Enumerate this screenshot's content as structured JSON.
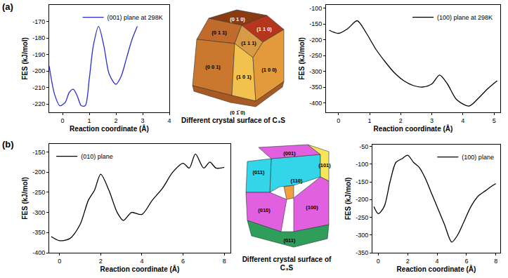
{
  "panel_labels": [
    "(a)",
    "(b)"
  ],
  "chart_data": [
    {
      "type": "line",
      "x_label": "Reaction coordinate (Å)",
      "y_label": "FES (kJ/mol)",
      "x": [
        -0.5,
        -0.3,
        -0.1,
        0.1,
        0.25,
        0.4,
        0.55,
        0.7,
        0.85,
        1.0,
        1.15,
        1.35,
        1.55,
        1.75,
        2.0,
        2.2,
        2.4,
        2.6,
        2.8
      ],
      "series": [
        {
          "name": "(001) plane at 298K",
          "color": "#2b2bd6",
          "values": [
            -197,
            -214,
            -221,
            -219,
            -213,
            -211,
            -215,
            -221,
            -221,
            -205,
            -185,
            -173,
            -185,
            -202,
            -208,
            -203,
            -192,
            -181,
            -173
          ]
        }
      ],
      "xlim": [
        -0.5,
        4.0
      ],
      "xticks": [
        0,
        1,
        2,
        3,
        4
      ],
      "ylim": [
        -225,
        -160
      ],
      "yticks": [
        -220,
        -210,
        -200,
        -190,
        -180,
        -170
      ],
      "grid": false,
      "legend": "top right"
    },
    {
      "type": "line",
      "x_label": "Reaction coordinate (Å)",
      "y_label": "FES (kJ/mol)",
      "x": [
        -0.3,
        0,
        0.3,
        0.6,
        0.9,
        1.2,
        1.5,
        1.8,
        2.1,
        2.4,
        2.7,
        3.0,
        3.25,
        3.5,
        3.8,
        4.2,
        4.5,
        4.8,
        5.1
      ],
      "series": [
        {
          "name": "(100) plane at 298K",
          "color": "#000000",
          "values": [
            -170,
            -180,
            -165,
            -140,
            -180,
            -230,
            -270,
            -305,
            -330,
            -345,
            -350,
            -340,
            -312,
            -340,
            -390,
            -410,
            -385,
            -355,
            -330
          ]
        }
      ],
      "xlim": [
        -0.4,
        5.2
      ],
      "xticks": [
        0,
        1,
        2,
        3,
        4,
        5
      ],
      "ylim": [
        -430,
        -90
      ],
      "yticks": [
        -400,
        -350,
        -300,
        -250,
        -200,
        -150,
        -100
      ],
      "grid": false,
      "legend": "top right"
    },
    {
      "type": "line",
      "x_label": "Reaction coordinate (Å)",
      "y_label": "FES (kJ/mol)",
      "x": [
        -0.4,
        0,
        0.5,
        1.0,
        1.4,
        1.7,
        2.0,
        2.4,
        2.8,
        3.1,
        3.5,
        4.0,
        4.5,
        5.0,
        5.5,
        6.0,
        6.3,
        6.6,
        7.0,
        7.3,
        7.6,
        8.0
      ],
      "series": [
        {
          "name": "(010) plane",
          "color": "#000000",
          "values": [
            -360,
            -370,
            -365,
            -330,
            -270,
            -245,
            -205,
            -245,
            -300,
            -320,
            -300,
            -305,
            -270,
            -240,
            -200,
            -178,
            -190,
            -155,
            -190,
            -175,
            -190,
            -188
          ]
        }
      ],
      "xlim": [
        -0.5,
        8.3
      ],
      "xticks": [
        0,
        2,
        4,
        6,
        8
      ],
      "ylim": [
        -400,
        -130
      ],
      "yticks": [
        -400,
        -350,
        -300,
        -250,
        -200,
        -150
      ],
      "grid": false,
      "legend": "top left"
    },
    {
      "type": "line",
      "x_label": "Reaction coordinate (Å)",
      "y_label": "FES (kJ/mol)",
      "x": [
        -0.3,
        0,
        0.4,
        0.8,
        1.2,
        1.6,
        2.0,
        2.4,
        2.8,
        3.2,
        3.6,
        4.0,
        4.5,
        5.0,
        5.4,
        5.8,
        6.3,
        6.8,
        7.3,
        7.8,
        8.0
      ],
      "series": [
        {
          "name": "(100) plane",
          "color": "#000000",
          "values": [
            -220,
            -240,
            -220,
            -150,
            -95,
            -85,
            -75,
            -95,
            -110,
            -140,
            -180,
            -220,
            -270,
            -320,
            -300,
            -265,
            -220,
            -190,
            -175,
            -160,
            -155
          ]
        }
      ],
      "xlim": [
        -0.4,
        8.3
      ],
      "xticks": [
        0,
        2,
        4,
        6,
        8
      ],
      "ylim": [
        -350,
        -45
      ],
      "yticks": [
        -350,
        -300,
        -250,
        -200,
        -150,
        -100,
        -50
      ],
      "grid": false,
      "legend": "top right"
    }
  ],
  "crystals": [
    {
      "caption": "Different crystal surface of C₃S",
      "faces": [
        "(0 1 0)",
        "(0 1 1)",
        "(1 1 0)",
        "(1 1 1)",
        "(0 0 1)",
        "(1 0 1)",
        "(1 0 0)",
        "(0 1̄ 0)"
      ]
    },
    {
      "caption": "Different crystal surface of C₃S",
      "faces": [
        "(001)",
        "(011)",
        "(101)",
        "(110)",
        "(010)",
        "(100)",
        "(011)"
      ]
    }
  ]
}
